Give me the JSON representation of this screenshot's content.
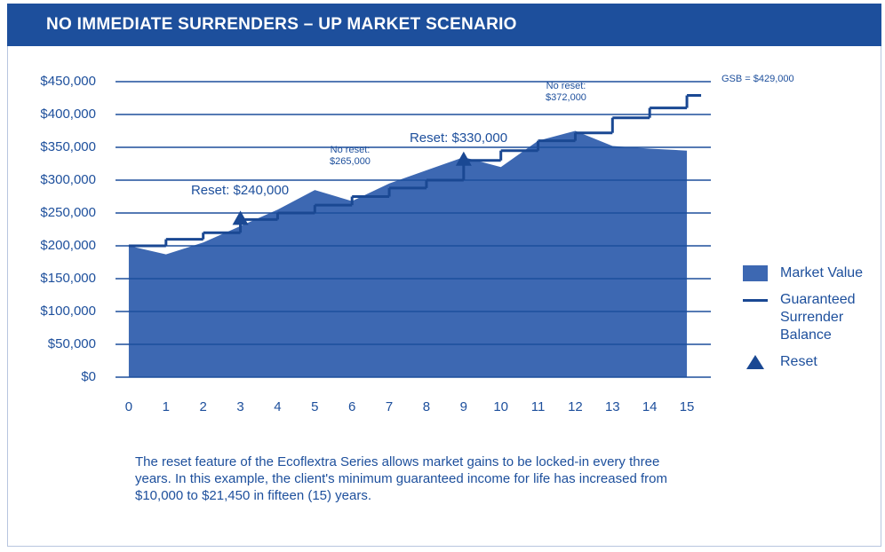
{
  "chart_data": {
    "type": "area",
    "title": "NO IMMEDIATE SURRENDERS – UP MARKET SCENARIO",
    "x": [
      0,
      1,
      2,
      3,
      4,
      5,
      6,
      7,
      8,
      9,
      10,
      11,
      12,
      13,
      14,
      15
    ],
    "xlim": [
      -0.5,
      15.5
    ],
    "xticks": [
      0,
      1,
      2,
      3,
      4,
      5,
      6,
      7,
      8,
      9,
      10,
      11,
      12,
      13,
      14,
      15
    ],
    "ylim": [
      0,
      450000
    ],
    "yticks": [
      {
        "value": 0,
        "label": "$0"
      },
      {
        "value": 50000,
        "label": "$50,000"
      },
      {
        "value": 100000,
        "label": "$100,000"
      },
      {
        "value": 150000,
        "label": "$150,000"
      },
      {
        "value": 200000,
        "label": "$200,000"
      },
      {
        "value": 250000,
        "label": "$250,000"
      },
      {
        "value": 300000,
        "label": "$300,000"
      },
      {
        "value": 350000,
        "label": "$350,000"
      },
      {
        "value": 400000,
        "label": "$400,000"
      },
      {
        "value": 450000,
        "label": "$450,000"
      }
    ],
    "grid": true,
    "series": [
      {
        "name": "Market Value",
        "color": "#3d68b2",
        "values": [
          200000,
          187000,
          205000,
          230000,
          255000,
          285000,
          268000,
          295000,
          315000,
          335000,
          320000,
          360000,
          375000,
          352000,
          348000,
          345000
        ]
      },
      {
        "name": "Guaranteed Surrender Balance",
        "color": "#1a4893",
        "step": true,
        "values": [
          200000,
          210000,
          220000,
          240000,
          250000,
          262000,
          275000,
          288000,
          300000,
          330000,
          345000,
          360000,
          372000,
          395000,
          410000,
          429000
        ]
      },
      {
        "name": "Reset",
        "color": "#1a4893",
        "marker": "triangle",
        "x": [
          3,
          9
        ],
        "values": [
          240000,
          330000
        ]
      }
    ],
    "annotations": [
      [
        "Reset: $240,000"
      ],
      [
        "No reset:",
        "$265,000"
      ],
      [
        "Reset: $330,000"
      ],
      [
        "No reset:",
        "$372,000"
      ],
      [
        "GSB = $429,000"
      ]
    ],
    "legend": "right"
  },
  "caption": "The reset feature of the Ecoflextra Series allows market gains to be locked-in every three years. In this example, the client's minimum guaranteed income for life has increased from $10,000 to $21,450 in fifteen (15) years."
}
